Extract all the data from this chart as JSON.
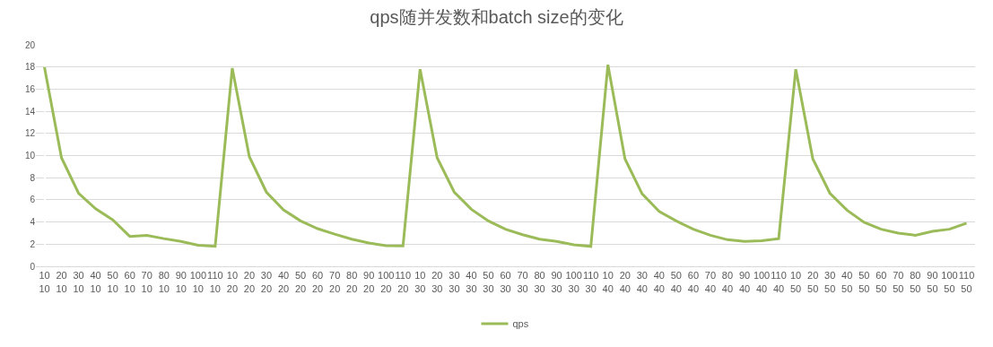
{
  "chart_data": {
    "type": "line",
    "title": "qps随并发数和batch size的变化",
    "categories": [
      "10\n10",
      "20\n10",
      "30\n10",
      "40\n10",
      "50\n10",
      "60\n10",
      "70\n10",
      "80\n10",
      "90\n10",
      "100\n10",
      "110\n10",
      "10\n20",
      "20\n20",
      "30\n20",
      "40\n20",
      "50\n20",
      "60\n20",
      "70\n20",
      "80\n20",
      "90\n20",
      "100\n20",
      "110\n20",
      "10\n30",
      "20\n30",
      "30\n30",
      "40\n30",
      "50\n30",
      "60\n30",
      "70\n30",
      "80\n30",
      "90\n30",
      "100\n30",
      "110\n30",
      "10\n40",
      "20\n40",
      "30\n40",
      "40\n40",
      "50\n40",
      "60\n40",
      "70\n40",
      "80\n40",
      "90\n40",
      "100\n40",
      "110\n40",
      "10\n50",
      "20\n50",
      "30\n50",
      "40\n50",
      "50\n50",
      "60\n50",
      "70\n50",
      "80\n50",
      "90\n50",
      "100\n50",
      "110\n50"
    ],
    "series": [
      {
        "name": "qps",
        "color": "#9bbb59",
        "values": [
          18.0,
          9.8,
          6.6,
          5.2,
          4.2,
          2.7,
          2.8,
          2.5,
          2.25,
          1.9,
          1.8,
          17.9,
          9.9,
          6.7,
          5.1,
          4.1,
          3.4,
          2.9,
          2.45,
          2.1,
          1.87,
          1.85,
          17.8,
          9.8,
          6.7,
          5.15,
          4.1,
          3.35,
          2.85,
          2.45,
          2.25,
          1.95,
          1.8,
          18.2,
          9.7,
          6.55,
          4.95,
          4.1,
          3.35,
          2.8,
          2.4,
          2.25,
          2.3,
          2.5,
          17.8,
          9.7,
          6.6,
          5.07,
          3.97,
          3.35,
          3.0,
          2.8,
          3.15,
          3.35,
          3.9
        ]
      }
    ],
    "ylim": [
      0,
      20
    ],
    "yticks": [
      0,
      2,
      4,
      6,
      8,
      10,
      12,
      14,
      16,
      18,
      20
    ],
    "grid": "y",
    "legend": "bottom",
    "marker": "none",
    "line_style": "solid"
  }
}
